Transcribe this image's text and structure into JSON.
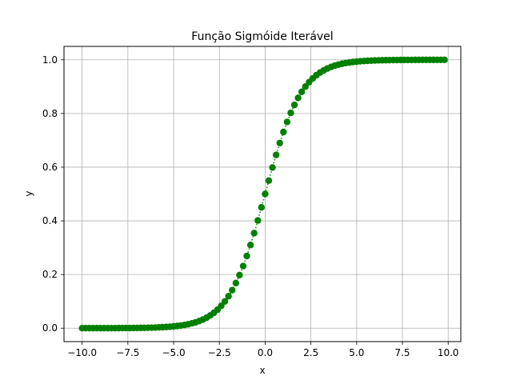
{
  "chart_data": {
    "type": "scatter",
    "title": "Função Sigmóide Iterável",
    "xlabel": "x",
    "ylabel": "y",
    "xlim": [
      -10.99,
      10.69
    ],
    "ylim": [
      -0.05,
      1.05
    ],
    "grid": true,
    "xticks": [
      -10.0,
      -7.5,
      -5.0,
      -2.5,
      0.0,
      2.5,
      5.0,
      7.5,
      10.0
    ],
    "xtick_labels": [
      "−10.0",
      "−7.5",
      "−5.0",
      "−2.5",
      "0.0",
      "2.5",
      "5.0",
      "7.5",
      "10.0"
    ],
    "yticks": [
      0.0,
      0.2,
      0.4,
      0.6,
      0.8,
      1.0
    ],
    "ytick_labels": [
      "0.0",
      "0.2",
      "0.4",
      "0.6",
      "0.8",
      "1.0"
    ],
    "series": [
      {
        "color": "#008000",
        "marker": "circle",
        "line_style": "dotted",
        "x_start": -10.0,
        "x_step": 0.2,
        "x_end": 9.8,
        "y_function": "1/(1+exp(-x))"
      }
    ]
  }
}
